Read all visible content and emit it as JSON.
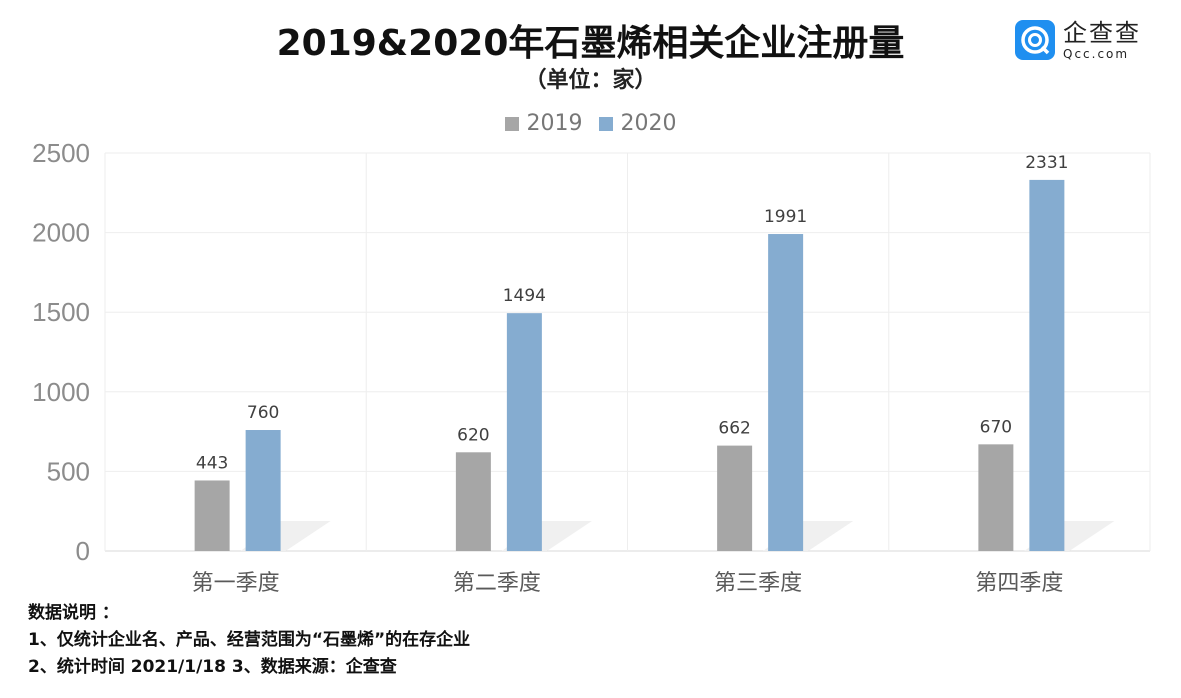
{
  "chart_data": {
    "type": "bar",
    "title": "2019&2020年石墨烯相关企业注册量",
    "subtitle": "（单位：家）",
    "categories": [
      "第一季度",
      "第二季度",
      "第三季度",
      "第四季度"
    ],
    "series": [
      {
        "name": "2019",
        "values": [
          443,
          620,
          662,
          670
        ],
        "color": "#a6a6a6"
      },
      {
        "name": "2020",
        "values": [
          760,
          1494,
          1991,
          2331
        ],
        "color": "#85acd0"
      }
    ],
    "yticks": [
      "0",
      "500",
      "1000",
      "1500",
      "2000",
      "2500"
    ],
    "ylim": [
      0,
      2500
    ],
    "grid": true,
    "legend": "top-center"
  },
  "logo": {
    "cn": "企查查",
    "en": "Qcc.com",
    "color": "#1f8ff0"
  },
  "notes": {
    "heading": "数据说明 ：",
    "line1": "1、仅统计企业名、产品、经营范围为“石墨烯”的在存企业",
    "line2": "2、统计时间 2021/1/18   3、数据来源：企查查"
  }
}
